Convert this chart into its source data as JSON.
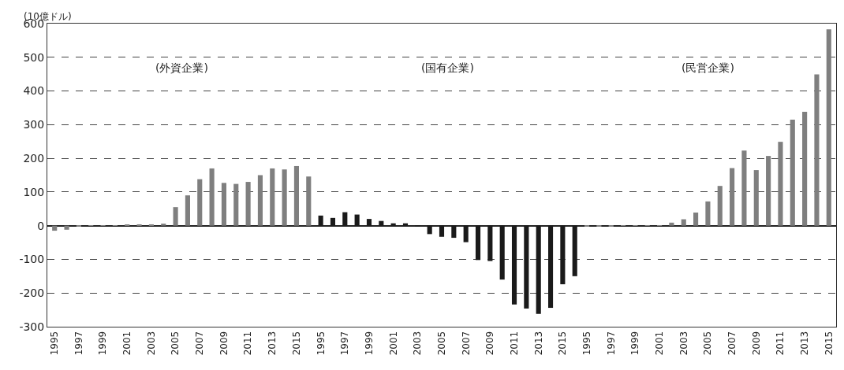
{
  "chart_data": {
    "type": "bar",
    "ylabel": "(10億ドル)",
    "categories": [
      "1995",
      null,
      "1997",
      null,
      "1999",
      null,
      "2001",
      null,
      "2003",
      null,
      "2005",
      null,
      "2007",
      null,
      "2009",
      null,
      "2011",
      null,
      "2013",
      null,
      "2015",
      null,
      "1995",
      null,
      "1997",
      null,
      "1999",
      null,
      "2001",
      null,
      "2003",
      null,
      "2005",
      null,
      "2007",
      null,
      "2009",
      null,
      "2011",
      null,
      "2013",
      null,
      "2015",
      null,
      "1995",
      null,
      "1997",
      null,
      "1999",
      null,
      "2001",
      null,
      "2003",
      null,
      "2005",
      null,
      "2007",
      null,
      "2009",
      null,
      "2011",
      null,
      "2013",
      null,
      "2015"
    ],
    "series": [
      {
        "color": "#7f7f7f",
        "values": [
          -15,
          -12,
          -3,
          1,
          1,
          1,
          2,
          4,
          4,
          6,
          55,
          90,
          138,
          170,
          127,
          124,
          130,
          150,
          170,
          167,
          177,
          146,
          null,
          null,
          null,
          null,
          null,
          null,
          null,
          null,
          null,
          null,
          null,
          null,
          null,
          null,
          null,
          null,
          null,
          null,
          null,
          null,
          null,
          null,
          null,
          null,
          null,
          null,
          null,
          null,
          null,
          null,
          null,
          null,
          null,
          null,
          null,
          null,
          null,
          null,
          null,
          null,
          null,
          null,
          null
        ]
      },
      {
        "color": "#1a1a1a",
        "values": [
          null,
          null,
          null,
          null,
          null,
          null,
          null,
          null,
          null,
          null,
          null,
          null,
          null,
          null,
          null,
          null,
          null,
          null,
          null,
          null,
          null,
          null,
          30,
          23,
          40,
          33,
          20,
          14,
          7,
          7,
          -3,
          -25,
          -33,
          -36,
          -49,
          -102,
          -105,
          -160,
          -234,
          -246,
          -262,
          -244,
          -174,
          -150,
          null,
          null,
          null,
          null,
          null,
          null,
          null,
          null,
          null,
          null,
          null,
          null,
          null,
          null,
          null,
          null,
          null,
          null,
          null,
          null,
          null
        ]
      },
      {
        "color": "#7f7f7f",
        "values": [
          null,
          null,
          null,
          null,
          null,
          null,
          null,
          null,
          null,
          null,
          null,
          null,
          null,
          null,
          null,
          null,
          null,
          null,
          null,
          null,
          null,
          null,
          null,
          null,
          null,
          null,
          null,
          null,
          null,
          null,
          null,
          null,
          null,
          null,
          null,
          null,
          null,
          null,
          null,
          null,
          null,
          null,
          null,
          null,
          -1,
          -2,
          -1,
          1,
          1,
          1,
          1,
          9,
          19,
          39,
          72,
          118,
          171,
          223,
          165,
          207,
          249,
          315,
          338,
          449,
          583
        ]
      }
    ],
    "annotations": [
      "(外資企業)",
      "(国有企業)",
      "(民営企業)"
    ],
    "ylim": [
      -300,
      600
    ],
    "yticks": [
      -300,
      -200,
      -100,
      0,
      100,
      200,
      300,
      400,
      500,
      600
    ],
    "grid": "y"
  }
}
